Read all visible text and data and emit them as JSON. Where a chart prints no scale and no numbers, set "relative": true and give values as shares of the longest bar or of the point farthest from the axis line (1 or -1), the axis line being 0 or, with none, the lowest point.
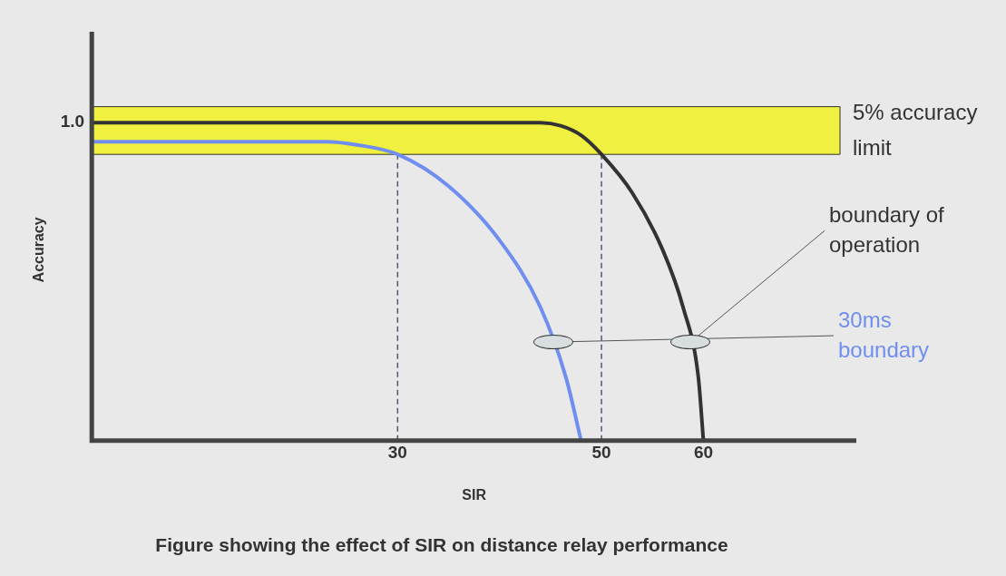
{
  "chart_data": {
    "type": "line",
    "title": "Figure showing the effect of SIR on distance relay performance",
    "xlabel": "SIR",
    "ylabel": "Accuracy",
    "xlim": [
      0,
      75
    ],
    "xticks": [
      30,
      50,
      60
    ],
    "relative": true,
    "annotations": [
      "1.0"
    ],
    "series": [
      {
        "name": "boundary of operation",
        "color": "#333333",
        "x": [
          0,
          44,
          46,
          48,
          50,
          53,
          56,
          58,
          59.5,
          60
        ],
        "values": [
          1,
          1,
          0.99,
          0.96,
          0.9,
          0.78,
          0.6,
          0.42,
          0.2,
          0
        ]
      },
      {
        "name": "30ms boundary",
        "color": "#6f8ef0",
        "x": [
          0,
          23,
          26,
          30,
          35,
          40,
          44,
          46.5,
          48
        ],
        "values": [
          0.94,
          0.94,
          0.93,
          0.9,
          0.8,
          0.63,
          0.42,
          0.2,
          0
        ]
      }
    ],
    "bands": [
      {
        "axis": "y",
        "from": 0.9,
        "to": 1.05,
        "label": "5% accuracy limit",
        "color": "#f0f040"
      }
    ],
    "ref_lines": [
      {
        "axis": "x",
        "value": 30,
        "color": "#555577",
        "line_style": "dashed"
      },
      {
        "axis": "x",
        "value": 50,
        "color": "#555577",
        "line_style": "dashed"
      }
    ],
    "grid": false,
    "legend": false,
    "line_style": "solid",
    "marker": "none"
  }
}
